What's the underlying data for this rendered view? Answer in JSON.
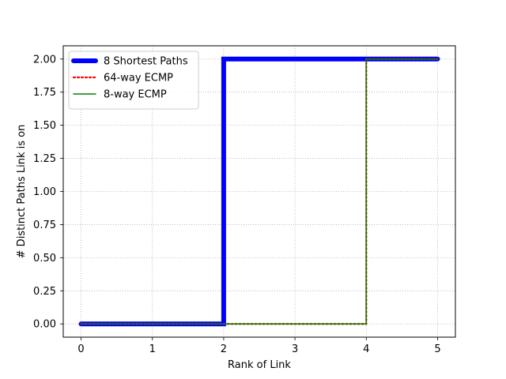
{
  "chart_data": {
    "type": "line",
    "title": "",
    "xlabel": "Rank of Link",
    "ylabel": "# Distinct Paths Link is on",
    "xlim": [
      -0.25,
      5.25
    ],
    "ylim": [
      -0.1,
      2.1
    ],
    "xticks": [
      0,
      1,
      2,
      3,
      4,
      5
    ],
    "xtick_labels": [
      "0",
      "1",
      "2",
      "3",
      "4",
      "5"
    ],
    "yticks": [
      0.0,
      0.25,
      0.5,
      0.75,
      1.0,
      1.25,
      1.5,
      1.75,
      2.0
    ],
    "ytick_labels": [
      "0.00",
      "0.25",
      "0.50",
      "0.75",
      "1.00",
      "1.25",
      "1.50",
      "1.75",
      "2.00"
    ],
    "grid": true,
    "grid_style": "dotted",
    "legend_position": "upper-left",
    "step_mode": "post",
    "series": [
      {
        "name": "8 Shortest Paths",
        "x": [
          0,
          1,
          2,
          3,
          4,
          5
        ],
        "y": [
          0,
          0,
          2,
          2,
          2,
          2
        ],
        "color": "#0000ff",
        "style": "solid",
        "width": "thick"
      },
      {
        "name": "64-way ECMP",
        "x": [
          0,
          1,
          2,
          3,
          4,
          5
        ],
        "y": [
          0,
          0,
          0,
          0,
          2,
          2
        ],
        "color": "#ff0000",
        "style": "dotted",
        "width": "medium"
      },
      {
        "name": "8-way ECMP",
        "x": [
          0,
          1,
          2,
          3,
          4,
          5
        ],
        "y": [
          0,
          0,
          0,
          0,
          2,
          2
        ],
        "color": "#008000",
        "style": "solid",
        "width": "thin"
      }
    ]
  }
}
